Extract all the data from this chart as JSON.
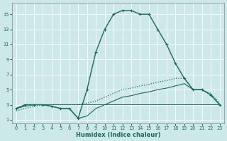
{
  "xlabel": "Humidex (Indice chaleur)",
  "bg_color": "#cce8e8",
  "grid_color": "#b0d0d0",
  "line_color": "#1a6b5a",
  "xlim": [
    -0.5,
    23.5
  ],
  "ylim": [
    0.5,
    16.5
  ],
  "yticks": [
    1,
    3,
    5,
    7,
    9,
    11,
    13,
    15
  ],
  "xticks": [
    0,
    1,
    2,
    3,
    4,
    5,
    6,
    7,
    8,
    9,
    10,
    11,
    12,
    13,
    14,
    15,
    16,
    17,
    18,
    19,
    20,
    21,
    22,
    23
  ],
  "series1_x": [
    0,
    1,
    2,
    3,
    4,
    5,
    6,
    7,
    8,
    9,
    10,
    11,
    12,
    13,
    14,
    15,
    16,
    17,
    18,
    19,
    20,
    21,
    22,
    23
  ],
  "series1_y": [
    2.5,
    3.0,
    3.0,
    3.0,
    2.8,
    2.5,
    2.5,
    1.2,
    5.0,
    10.0,
    13.0,
    15.0,
    15.5,
    15.5,
    15.0,
    15.0,
    13.0,
    11.0,
    8.5,
    6.5,
    5.0,
    5.0,
    4.3,
    3.0
  ],
  "series2_x": [
    0,
    1,
    2,
    3,
    4,
    5,
    6,
    7,
    8,
    9,
    10,
    11,
    12,
    13,
    14,
    15,
    16,
    17,
    18,
    19,
    20,
    21,
    22,
    23
  ],
  "series2_y": [
    2.2,
    2.5,
    2.8,
    3.0,
    3.0,
    3.0,
    3.0,
    3.0,
    3.2,
    3.5,
    4.0,
    4.5,
    5.0,
    5.2,
    5.5,
    5.7,
    6.0,
    6.2,
    6.5,
    6.5,
    5.0,
    5.0,
    4.5,
    3.2
  ],
  "series3_x": [
    0,
    1,
    2,
    3,
    4,
    5,
    6,
    7,
    8,
    9,
    10,
    11,
    12,
    13,
    14,
    15,
    16,
    17,
    18,
    19,
    20,
    21,
    22,
    23
  ],
  "series3_y": [
    2.5,
    3.0,
    3.0,
    3.0,
    2.8,
    2.5,
    2.5,
    1.2,
    1.5,
    2.5,
    3.0,
    3.5,
    4.0,
    4.2,
    4.5,
    4.7,
    5.0,
    5.2,
    5.5,
    5.8,
    5.0,
    5.0,
    4.3,
    3.0
  ],
  "series4_x": [
    0,
    1,
    2,
    3,
    4,
    5,
    6,
    7,
    8,
    9,
    10,
    11,
    12,
    13,
    14,
    15,
    16,
    17,
    18,
    19,
    20,
    21,
    22,
    23
  ],
  "series4_y": [
    2.5,
    2.8,
    3.0,
    3.0,
    3.0,
    3.0,
    3.0,
    3.0,
    3.0,
    3.0,
    3.0,
    3.0,
    3.0,
    3.0,
    3.0,
    3.0,
    3.0,
    3.0,
    3.0,
    3.0,
    3.0,
    3.0,
    3.0,
    3.0
  ]
}
